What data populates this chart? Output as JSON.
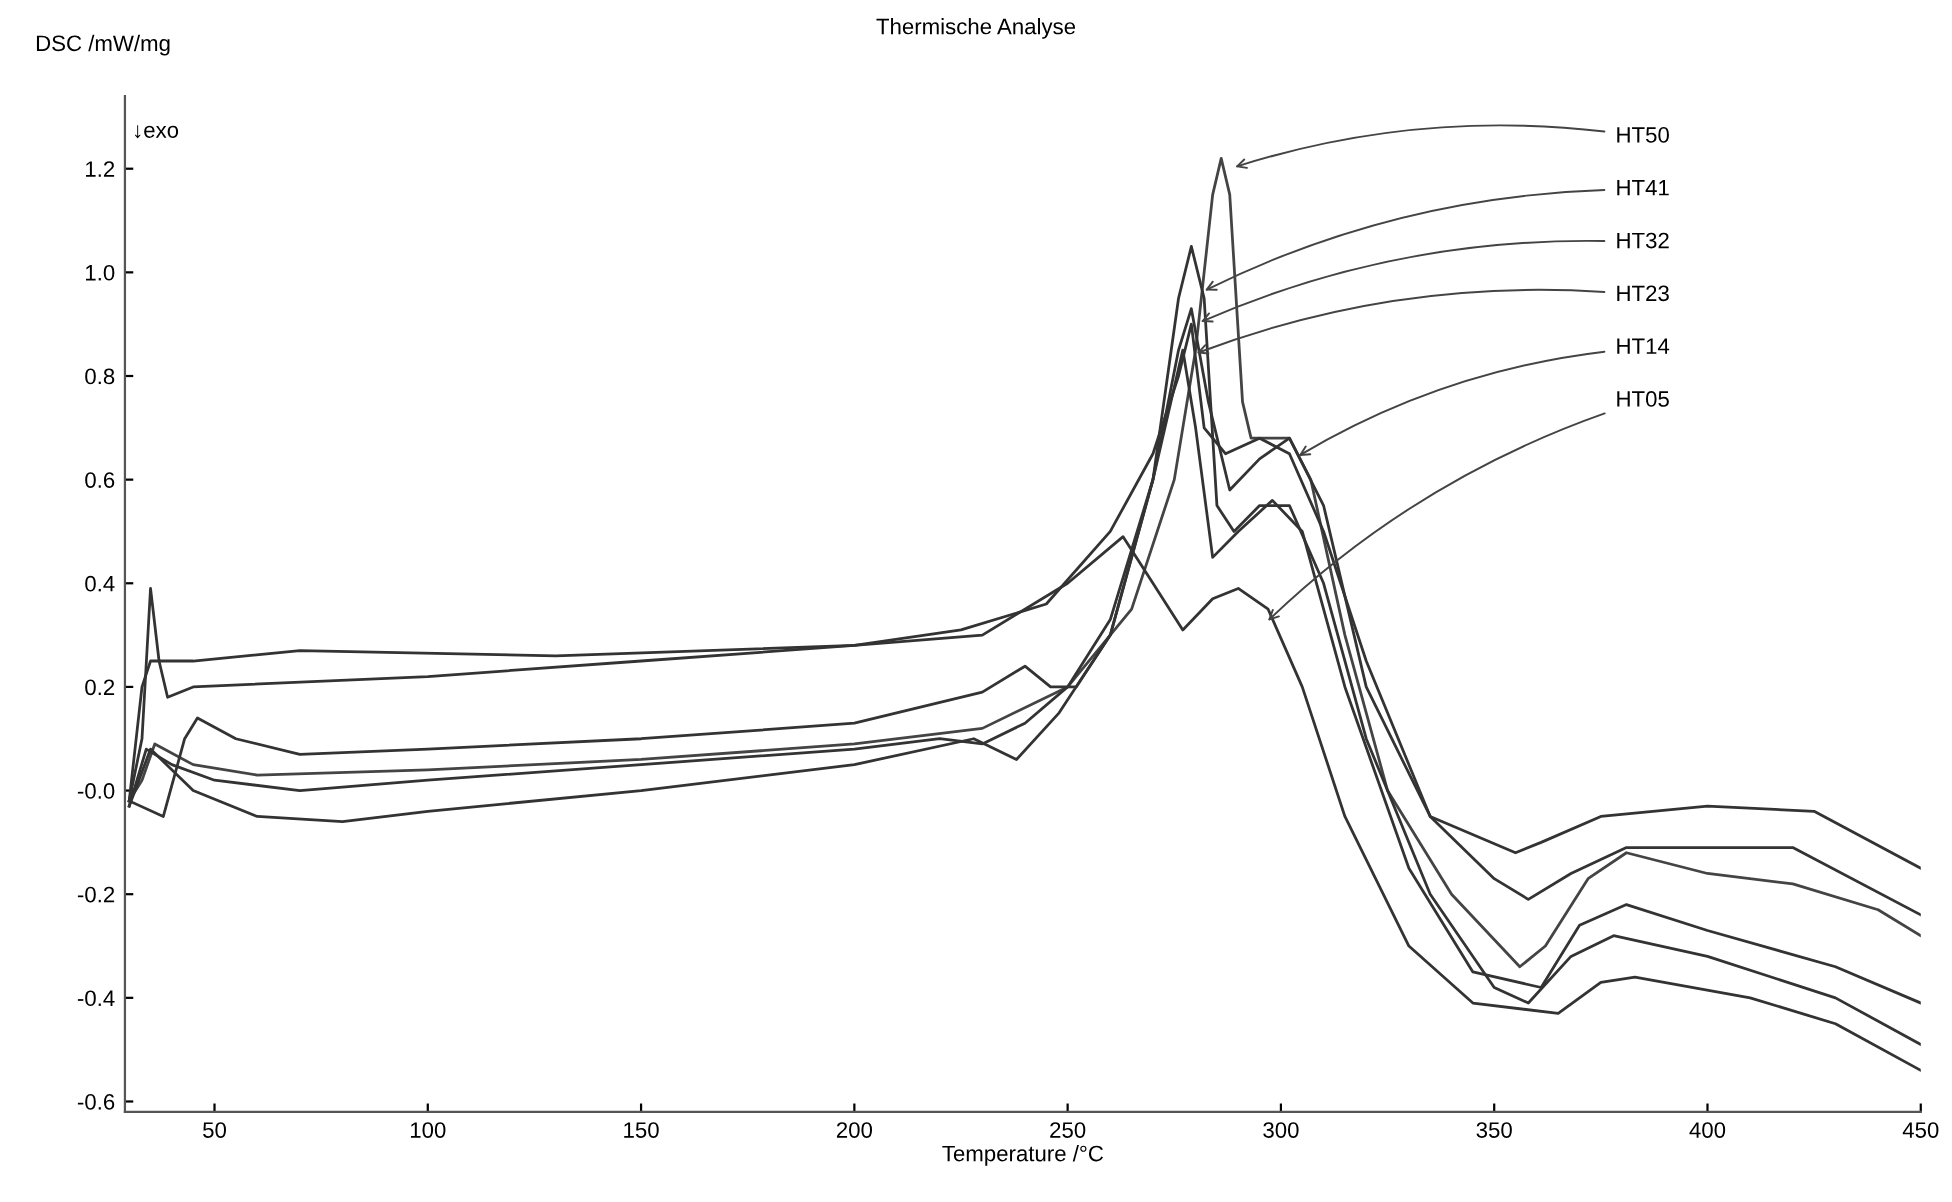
{
  "chart_data": {
    "type": "line",
    "title": "Thermische Analyse",
    "xlabel": "Temperature /°C",
    "ylabel": "DSC /mW/mg",
    "xlim": [
      29,
      450
    ],
    "ylim": [
      -0.62,
      1.34
    ],
    "xticks": [
      50,
      100,
      150,
      200,
      250,
      300,
      350,
      400,
      {
        "value": 450,
        "label": "450"
      }
    ],
    "yticks": [
      {
        "value": 1.2,
        "label": "1.2"
      },
      {
        "value": 1.0,
        "label": "1.0"
      },
      {
        "value": 0.8,
        "label": "0.8"
      },
      {
        "value": 0.6,
        "label": "0.6"
      },
      {
        "value": 0.4,
        "label": "0.4"
      },
      {
        "value": 0.2,
        "label": "0.2"
      },
      {
        "value": 0,
        "label": "-0.0"
      },
      {
        "value": -0.2,
        "label": "-0.2"
      },
      {
        "value": -0.4,
        "label": "-0.4"
      },
      {
        "value": -0.6,
        "label": "-0.6"
      }
    ],
    "grid": false,
    "legend": false,
    "marker": "none",
    "line_style": "solid",
    "annotations": [
      "↓exo",
      {
        "text": "HT50",
        "x": 288,
        "y": 1.2
      },
      {
        "text": "HT41",
        "x": 281,
        "y": 0.96
      },
      {
        "text": "HT32",
        "x": 280,
        "y": 0.9
      },
      {
        "text": "HT23",
        "x": 279,
        "y": 0.84
      },
      {
        "text": "HT14",
        "x": 303,
        "y": 0.64
      },
      {
        "text": "HT05",
        "x": 296,
        "y": 0.32
      }
    ],
    "series": [
      {
        "color": "#444444",
        "x": [
          30,
          33,
          36,
          45,
          60,
          100,
          150,
          200,
          230,
          250,
          265,
          275,
          280,
          284,
          286,
          288,
          291,
          293,
          297,
          302,
          307,
          315,
          325,
          340,
          356,
          362,
          372,
          381,
          400,
          420,
          440,
          450
        ],
        "values": [
          -0.02,
          0.02,
          0.09,
          0.05,
          0.03,
          0.04,
          0.06,
          0.09,
          0.12,
          0.2,
          0.35,
          0.6,
          0.85,
          1.15,
          1.22,
          1.15,
          0.75,
          0.68,
          0.68,
          0.68,
          0.6,
          0.3,
          0.0,
          -0.2,
          -0.34,
          -0.3,
          -0.17,
          -0.12,
          -0.16,
          -0.18,
          -0.23,
          -0.28
        ]
      },
      {
        "color": "#333333",
        "x": [
          30,
          35,
          45,
          60,
          80,
          100,
          150,
          200,
          228,
          238,
          248,
          260,
          270,
          276,
          279,
          282,
          285,
          289,
          295,
          302,
          310,
          320,
          335,
          350,
          358,
          368,
          378,
          400,
          430,
          450
        ],
        "values": [
          -0.03,
          0.08,
          0.0,
          -0.05,
          -0.06,
          -0.04,
          0.0,
          0.05,
          0.1,
          0.06,
          0.15,
          0.3,
          0.6,
          0.95,
          1.05,
          0.95,
          0.55,
          0.5,
          0.55,
          0.55,
          0.4,
          0.1,
          -0.2,
          -0.38,
          -0.41,
          -0.32,
          -0.28,
          -0.32,
          -0.4,
          -0.49
        ]
      },
      {
        "color": "#333333",
        "x": [
          30,
          38,
          43,
          46,
          55,
          70,
          100,
          150,
          200,
          230,
          240,
          246,
          252,
          260,
          270,
          276,
          279,
          283,
          288,
          295,
          302,
          310,
          320,
          335,
          350,
          358,
          368,
          381,
          420,
          450
        ],
        "values": [
          -0.02,
          -0.05,
          0.1,
          0.14,
          0.1,
          0.07,
          0.08,
          0.1,
          0.13,
          0.19,
          0.24,
          0.2,
          0.2,
          0.3,
          0.6,
          0.85,
          0.93,
          0.75,
          0.58,
          0.64,
          0.68,
          0.55,
          0.2,
          -0.05,
          -0.17,
          -0.21,
          -0.16,
          -0.11,
          -0.11,
          -0.24
        ]
      },
      {
        "color": "#333333",
        "x": [
          30,
          34,
          40,
          50,
          70,
          100,
          150,
          200,
          220,
          230,
          240,
          250,
          260,
          270,
          277,
          280,
          284,
          290,
          298,
          305,
          315,
          330,
          345,
          361,
          370,
          381,
          400,
          430,
          450
        ],
        "values": [
          -0.03,
          0.08,
          0.05,
          0.02,
          0.0,
          0.02,
          0.05,
          0.08,
          0.1,
          0.09,
          0.13,
          0.2,
          0.33,
          0.6,
          0.85,
          0.7,
          0.45,
          0.5,
          0.56,
          0.5,
          0.2,
          -0.15,
          -0.35,
          -0.38,
          -0.26,
          -0.22,
          -0.27,
          -0.34,
          -0.41
        ]
      },
      {
        "color": "#333333",
        "x": [
          30,
          33,
          35,
          45,
          70,
          130,
          200,
          225,
          245,
          260,
          270,
          276,
          279,
          282,
          287,
          295,
          302,
          310,
          320,
          335,
          355,
          361,
          375,
          400,
          425,
          450
        ],
        "values": [
          -0.02,
          0.2,
          0.25,
          0.25,
          0.27,
          0.26,
          0.28,
          0.31,
          0.36,
          0.5,
          0.65,
          0.8,
          0.9,
          0.7,
          0.65,
          0.68,
          0.65,
          0.5,
          0.25,
          -0.05,
          -0.12,
          -0.1,
          -0.05,
          -0.03,
          -0.04,
          -0.15
        ]
      },
      {
        "color": "#333333",
        "x": [
          30,
          33,
          35,
          37,
          39,
          45,
          100,
          150,
          200,
          230,
          250,
          263,
          270,
          277,
          284,
          290,
          297,
          305,
          315,
          330,
          345,
          365,
          375,
          383,
          410,
          430,
          450
        ],
        "values": [
          -0.02,
          0.1,
          0.39,
          0.25,
          0.18,
          0.2,
          0.22,
          0.25,
          0.28,
          0.3,
          0.4,
          0.49,
          0.4,
          0.31,
          0.37,
          0.39,
          0.35,
          0.2,
          -0.05,
          -0.3,
          -0.41,
          -0.43,
          -0.37,
          -0.36,
          -0.4,
          -0.45,
          -0.54
        ]
      }
    ]
  }
}
